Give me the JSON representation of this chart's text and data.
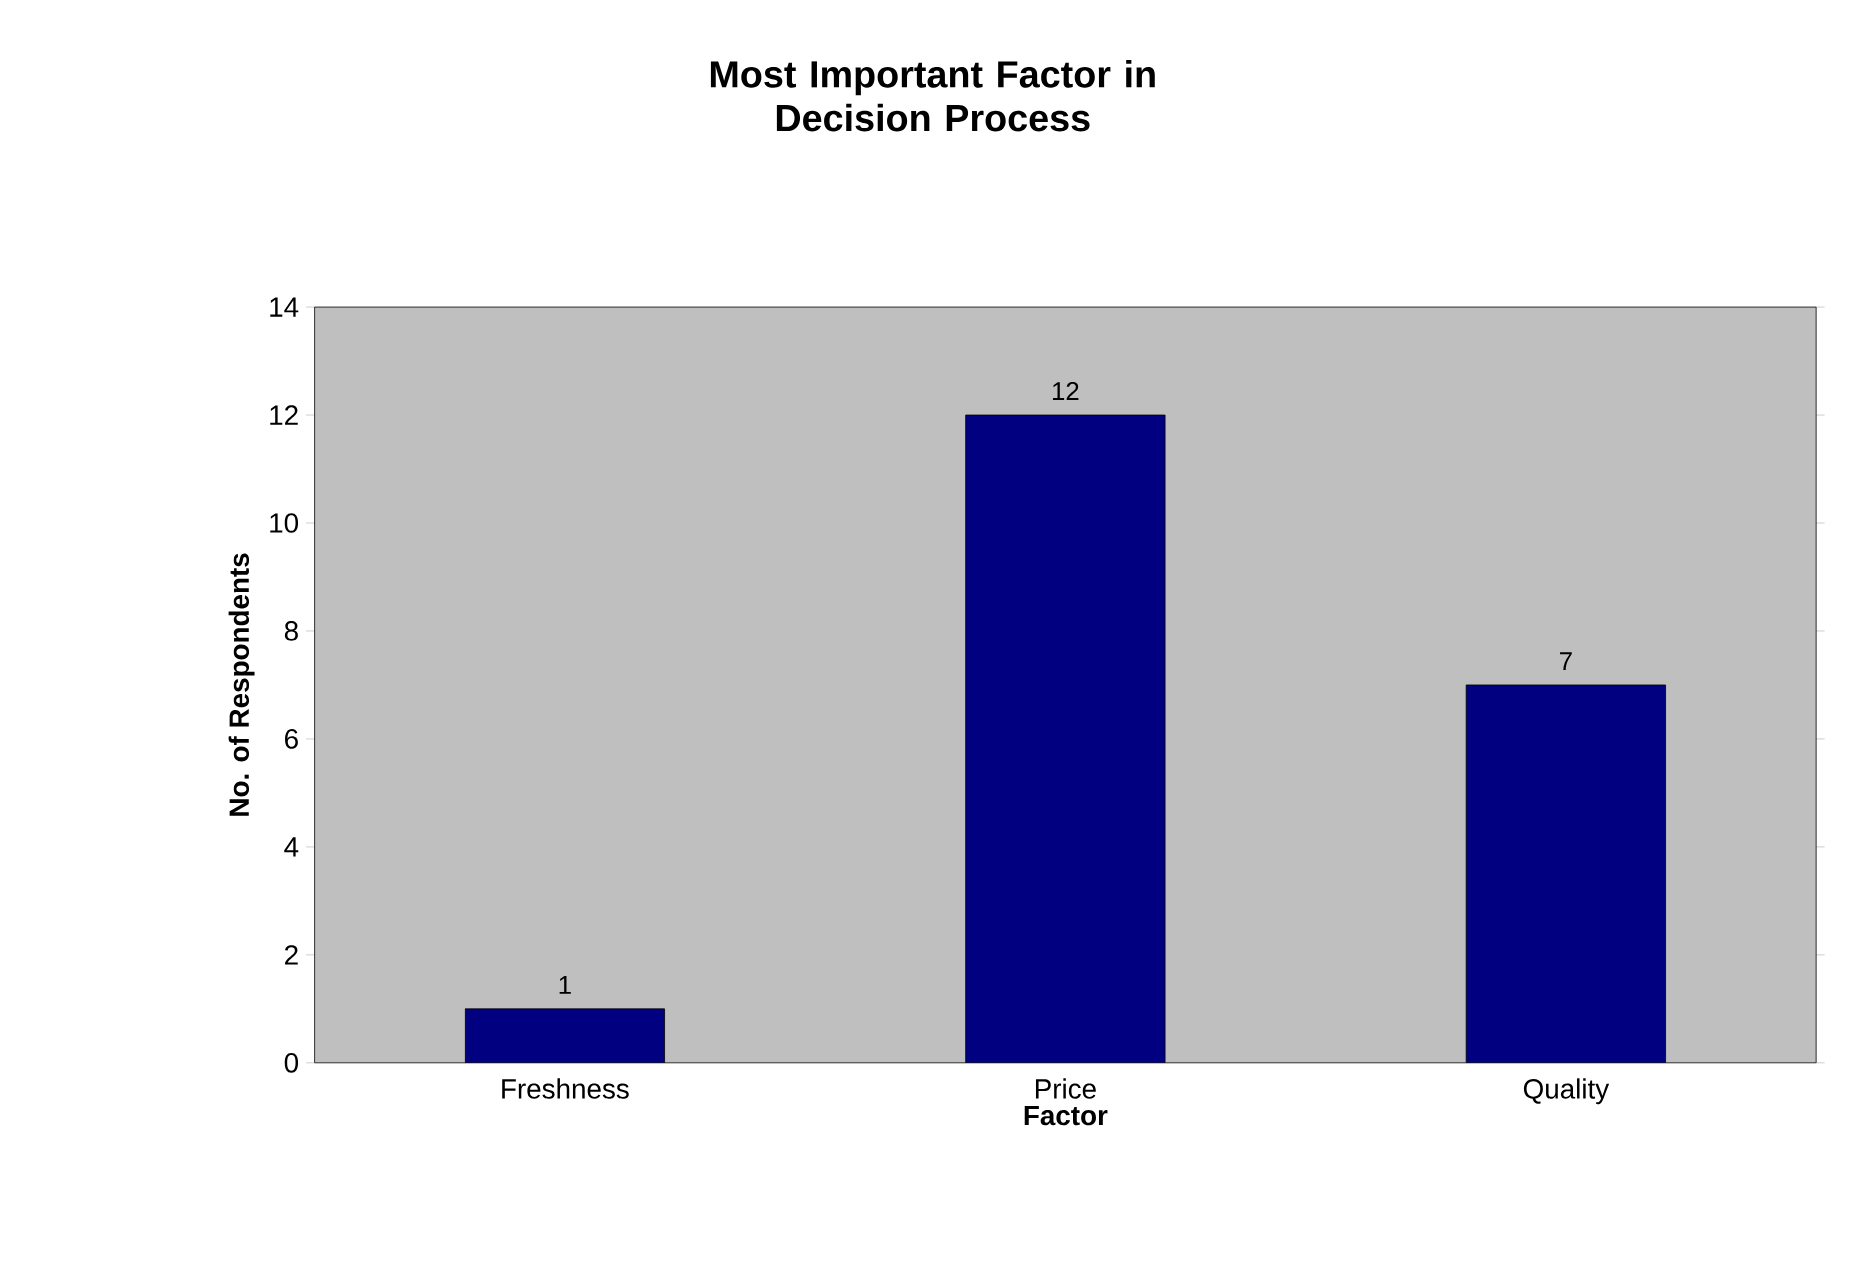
{
  "chart_data": {
    "type": "bar",
    "title": "Most Important Factor in\nDecision Process",
    "xlabel": "Factor",
    "ylabel": "No. of Respondents",
    "categories": [
      "Freshness",
      "Price",
      "Quality"
    ],
    "values": [
      1,
      12,
      7
    ],
    "color": "#000080",
    "ylim": [
      0,
      14
    ],
    "yticks": [
      0,
      2,
      4,
      6,
      8,
      10,
      12,
      14
    ],
    "grid": false,
    "data_labels": true
  }
}
